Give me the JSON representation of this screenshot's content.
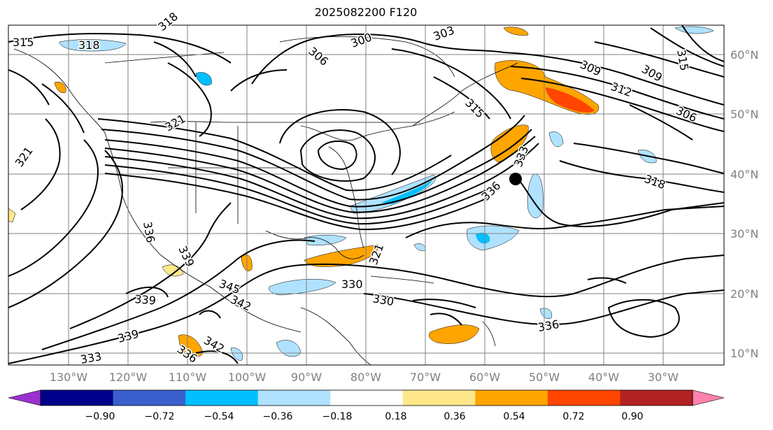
{
  "title": "2025082200 F120",
  "lon_ticks": [
    "130°W",
    "120°W",
    "110°W",
    "100°W",
    "90°W",
    "80°W",
    "70°W",
    "60°W",
    "50°W",
    "40°W",
    "30°W"
  ],
  "lat_ticks": [
    "60°N",
    "50°N",
    "40°N",
    "30°N",
    "20°N",
    "10°N"
  ],
  "colorbar": {
    "colors": [
      "#9b30d0",
      "#00008b",
      "#3a5fcd",
      "#00bfff",
      "#b0e2ff",
      "#ffffff",
      "#ffe88a",
      "#ffa500",
      "#ff4500",
      "#b22222",
      "#ff82ab"
    ],
    "ticks": [
      "−0.90",
      "−0.72",
      "−0.54",
      "−0.36",
      "−0.18",
      "0.18",
      "0.36",
      "0.54",
      "0.72",
      "0.90"
    ]
  },
  "contour_labels": [
    "315",
    "318",
    "318",
    "306",
    "300",
    "303",
    "309",
    "312",
    "309",
    "315",
    "306",
    "321",
    "321",
    "315",
    "318",
    "333",
    "336",
    "336",
    "339",
    "345",
    "342",
    "330",
    "321",
    "330",
    "339",
    "339",
    "342",
    "336",
    "333",
    "336"
  ],
  "storm_marker": "filled-circle",
  "chart_data": {
    "type": "contour-map",
    "field_contours": "isentropes (K)",
    "contour_values": [
      300,
      303,
      306,
      309,
      312,
      315,
      318,
      321,
      330,
      333,
      336,
      339,
      342,
      345
    ],
    "shading_levels": [
      -0.9,
      -0.72,
      -0.54,
      -0.36,
      -0.18,
      0.18,
      0.36,
      0.54,
      0.72,
      0.9
    ],
    "lon_range": [
      "135°W",
      "25°W"
    ],
    "lat_range": [
      "8°N",
      "65°N"
    ],
    "grid": true
  }
}
